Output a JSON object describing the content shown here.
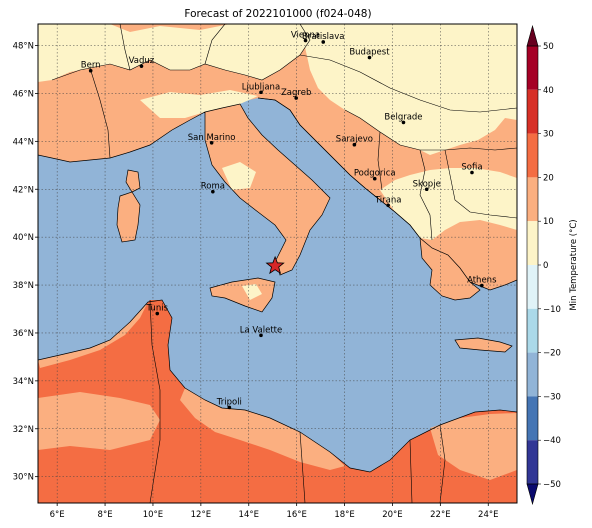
{
  "title": "Forecast of 2022101000 (f024-048)",
  "colorbar": {
    "label": "Min Temperature (°C)",
    "ticks": [
      "50",
      "40",
      "30",
      "20",
      "10",
      "0",
      "−10",
      "−20",
      "−30",
      "−40",
      "−50"
    ],
    "range": [
      -50,
      50
    ]
  },
  "axes": {
    "lon_ticks": [
      "6°E",
      "8°E",
      "10°E",
      "12°E",
      "14°E",
      "16°E",
      "18°E",
      "20°E",
      "22°E",
      "24°E"
    ],
    "lat_ticks": [
      "48°N",
      "46°N",
      "44°N",
      "42°N",
      "40°N",
      "38°N",
      "36°N",
      "34°N",
      "32°N",
      "30°N"
    ]
  },
  "colors": {
    "sea": "#91b4d7",
    "band_0_10": "#fdf4c8",
    "band_10_20": "#fbaf80",
    "band_20_30": "#f46d43",
    "star": "#d62728"
  },
  "cities": [
    {
      "name": "Bern",
      "lon": 7.4,
      "lat": 46.95
    },
    {
      "name": "Vaduz",
      "lon": 9.52,
      "lat": 47.14
    },
    {
      "name": "Vienna",
      "lon": 16.37,
      "lat": 48.21
    },
    {
      "name": "Bratislava",
      "lon": 17.11,
      "lat": 48.15
    },
    {
      "name": "Budapest",
      "lon": 19.04,
      "lat": 47.5
    },
    {
      "name": "Ljubljana",
      "lon": 14.51,
      "lat": 46.05
    },
    {
      "name": "Zagreb",
      "lon": 15.98,
      "lat": 45.81
    },
    {
      "name": "Belgrade",
      "lon": 20.46,
      "lat": 44.79
    },
    {
      "name": "San Marino",
      "lon": 12.45,
      "lat": 43.94
    },
    {
      "name": "Sarajevo",
      "lon": 18.41,
      "lat": 43.86
    },
    {
      "name": "Sofia",
      "lon": 23.32,
      "lat": 42.7
    },
    {
      "name": "Podgorica",
      "lon": 19.26,
      "lat": 42.44
    },
    {
      "name": "Skopje",
      "lon": 21.43,
      "lat": 42.0
    },
    {
      "name": "Roma",
      "lon": 12.5,
      "lat": 41.9
    },
    {
      "name": "Tirana",
      "lon": 19.82,
      "lat": 41.33
    },
    {
      "name": "Athens",
      "lon": 23.73,
      "lat": 37.98
    },
    {
      "name": "Tunis",
      "lon": 10.18,
      "lat": 36.81
    },
    {
      "name": "La Valette",
      "lon": 14.51,
      "lat": 35.9
    },
    {
      "name": "Tripoli",
      "lon": 13.19,
      "lat": 32.89
    }
  ],
  "marker": {
    "lon": 15.1,
    "lat": 38.8
  }
}
